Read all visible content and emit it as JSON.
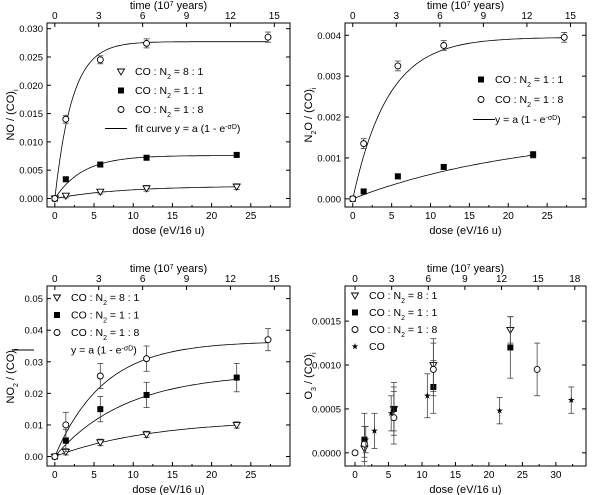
{
  "chart_data": [
    {
      "type": "scatter",
      "panel": "top-left",
      "xlabel": "dose (eV/16 u)",
      "ylabel": "NO / (CO)i",
      "ylabel_parts": [
        "NO / (CO)",
        "i"
      ],
      "top_axis_title": "time (10",
      "top_axis_exp": "7",
      "top_axis_unit": " years)",
      "xlim": [
        -1,
        30
      ],
      "ylim": [
        -0.0015,
        0.031
      ],
      "x_ticks": [
        0,
        5,
        10,
        15,
        20,
        25
      ],
      "y_ticks": [
        0.0,
        0.005,
        0.01,
        0.015,
        0.02,
        0.025,
        0.03
      ],
      "y_tick_labels": [
        "0.000",
        "0.005",
        "0.010",
        "0.015",
        "0.020",
        "0.025",
        "0.030"
      ],
      "top_ticks": [
        "0",
        "3",
        "6",
        "9",
        "12",
        "15"
      ],
      "top_tick_x": [
        0,
        5.6,
        11.2,
        16.8,
        22.4,
        28.0
      ],
      "legend_position": "center-right",
      "series": [
        {
          "name": "CO : N2 = 8 : 1",
          "label_pre": "CO : N",
          "label_post": " = 8 : 1",
          "marker": "triangle-down",
          "x": [
            0,
            1.4,
            5.8,
            11.7,
            23.2
          ],
          "y": [
            0,
            0.0005,
            0.0012,
            0.0018,
            0.0021
          ],
          "err": [
            0.0003,
            0.0004,
            0.0004,
            0.0005,
            0.0005
          ],
          "fit_a": 0.0022,
          "fit_s": 0.12
        },
        {
          "name": "CO : N2 = 1 : 1",
          "label_pre": "CO : N",
          "label_post": " = 1 : 1",
          "marker": "square",
          "x": [
            0,
            1.4,
            5.8,
            11.7,
            23.2
          ],
          "y": [
            0,
            0.0034,
            0.006,
            0.0072,
            0.0077
          ],
          "err": [
            0.0002,
            0.0003,
            0.0004,
            0.0004,
            0.0004
          ],
          "fit_a": 0.0076,
          "fit_s": 0.28
        },
        {
          "name": "CO : N2 = 1 : 8",
          "label_pre": "CO : N",
          "label_post": " = 1 : 8",
          "marker": "circle",
          "x": [
            0,
            1.4,
            5.8,
            11.7,
            27.2
          ],
          "y": [
            0,
            0.014,
            0.0245,
            0.0274,
            0.0285
          ],
          "err": [
            0.0003,
            0.0007,
            0.0007,
            0.0008,
            0.0009
          ],
          "fit_a": 0.0277,
          "fit_s": 0.45
        }
      ],
      "fit_legend": "fit curve y = a (1 - e",
      "fit_exp": "-σD",
      "fit_legend_end": ")"
    },
    {
      "type": "scatter",
      "panel": "top-right",
      "xlabel": "dose (eV/16 u)",
      "ylabel": "N2O / (CO)i",
      "ylabel_parts": [
        "N",
        "2",
        "O / (CO)",
        "i"
      ],
      "top_axis_title": "time (10",
      "top_axis_exp": "7",
      "top_axis_unit": " years)",
      "xlim": [
        -1,
        30
      ],
      "ylim": [
        -0.0002,
        0.0043
      ],
      "x_ticks": [
        0,
        5,
        10,
        15,
        20,
        25
      ],
      "y_ticks": [
        0.0,
        0.001,
        0.002,
        0.003,
        0.004
      ],
      "y_tick_labels": [
        "0.000",
        "0.001",
        "0.002",
        "0.003",
        "0.004"
      ],
      "top_ticks": [
        "0",
        "3",
        "6",
        "9",
        "12",
        "15"
      ],
      "top_tick_x": [
        0,
        5.6,
        11.2,
        16.8,
        22.4,
        28.0
      ],
      "legend_position": "center-right",
      "series": [
        {
          "name": "CO : N2 = 1 : 1",
          "label_pre": "CO : N",
          "label_post": " = 1 : 1",
          "marker": "square",
          "x": [
            0,
            1.4,
            5.8,
            11.7,
            23.2
          ],
          "y": [
            0,
            0.00018,
            0.00055,
            0.00078,
            0.00108
          ],
          "err": [
            3e-05,
            6e-05,
            6e-05,
            6e-05,
            8e-05
          ],
          "fit_a": 0.00165,
          "fit_s": 0.045
        },
        {
          "name": "CO : N2 = 1 : 8",
          "label_pre": "CO : N",
          "label_post": " = 1 : 8",
          "marker": "circle",
          "x": [
            0,
            1.4,
            5.8,
            11.7,
            27.2
          ],
          "y": [
            0,
            0.00135,
            0.00325,
            0.00375,
            0.00395
          ],
          "err": [
            3e-05,
            0.00012,
            0.00012,
            0.00012,
            0.00012
          ],
          "fit_a": 0.00395,
          "fit_s": 0.22
        }
      ],
      "fit_legend": "y = a (1 - e",
      "fit_exp": "-σD",
      "fit_legend_end": ")"
    },
    {
      "type": "scatter",
      "panel": "bottom-left",
      "xlabel": "dose (eV/16 u)",
      "ylabel": "NO2 / (CO)i",
      "ylabel_parts": [
        "NO",
        "2",
        " / (CO)",
        "i"
      ],
      "top_axis_title": "time (10",
      "top_axis_exp": "7",
      "top_axis_unit": " years)",
      "xlim": [
        -1,
        30
      ],
      "ylim": [
        -0.003,
        0.054
      ],
      "x_ticks": [
        0,
        5,
        10,
        15,
        20,
        25
      ],
      "y_ticks": [
        0.0,
        0.01,
        0.02,
        0.03,
        0.04,
        0.05
      ],
      "y_tick_labels": [
        "0.00",
        "0.01",
        "0.02",
        "0.03",
        "0.04",
        "0.05"
      ],
      "top_ticks": [
        "0",
        "3",
        "6",
        "9",
        "12",
        "15"
      ],
      "top_tick_x": [
        0,
        5.6,
        11.2,
        16.8,
        22.4,
        28.0
      ],
      "legend_position": "top-left",
      "series": [
        {
          "name": "CO : N2 = 8 : 1",
          "label_pre": "CO : N",
          "label_post": " = 8 : 1",
          "marker": "triangle-down",
          "x": [
            0,
            1.4,
            5.8,
            11.7,
            23.2
          ],
          "y": [
            0,
            0.0015,
            0.0045,
            0.007,
            0.01
          ],
          "err": [
            0.0005,
            0.001,
            0.001,
            0.001,
            0.001
          ],
          "fit_a": 0.0118,
          "fit_s": 0.08
        },
        {
          "name": "CO : N2 = 1 : 1",
          "label_pre": "CO : N",
          "label_post": " = 1 : 1",
          "marker": "square",
          "x": [
            0,
            1.4,
            5.8,
            11.7,
            23.2
          ],
          "y": [
            0,
            0.005,
            0.015,
            0.0195,
            0.025
          ],
          "err": [
            0.0005,
            0.0035,
            0.004,
            0.004,
            0.0045
          ],
          "fit_a": 0.0265,
          "fit_s": 0.11
        },
        {
          "name": "CO : N2 = 1 : 8",
          "label_pre": "CO : N",
          "label_post": " = 1 : 8",
          "marker": "circle",
          "x": [
            0,
            1.4,
            5.8,
            11.7,
            27.2
          ],
          "y": [
            0,
            0.01,
            0.0255,
            0.031,
            0.037
          ],
          "err": [
            0.0005,
            0.004,
            0.004,
            0.004,
            0.0035
          ],
          "fit_a": 0.0365,
          "fit_s": 0.16
        }
      ],
      "fit_legend": "y = a (1 - e",
      "fit_exp": "-σD",
      "fit_legend_end": ")"
    },
    {
      "type": "scatter",
      "panel": "bottom-right",
      "xlabel": "dose (eV/16 u)",
      "ylabel": "O3 / (CO)i",
      "ylabel_parts": [
        "O",
        "3",
        " / (CO)",
        "i"
      ],
      "top_axis_title": "time (10",
      "top_axis_exp": "7",
      "top_axis_unit": " years)",
      "xlim": [
        -1.5,
        34.5
      ],
      "ylim": [
        -0.00015,
        0.0019
      ],
      "x_ticks": [
        0,
        5,
        10,
        15,
        20,
        25,
        30
      ],
      "y_ticks": [
        0.0,
        0.0005,
        0.001,
        0.0015
      ],
      "y_tick_labels": [
        "0.0000",
        "0.0005",
        "0.0010",
        "0.0015"
      ],
      "top_ticks": [
        "0",
        "3",
        "6",
        "9",
        "12",
        "15",
        "18"
      ],
      "top_tick_x": [
        0,
        5.47,
        10.94,
        16.41,
        21.88,
        27.35,
        32.82
      ],
      "legend_position": "top-left",
      "series": [
        {
          "name": "CO : N2 = 8 : 1",
          "label_pre": "CO : N",
          "label_post": " = 8 : 1",
          "marker": "triangle-down",
          "x": [
            1.4,
            5.8,
            11.7,
            23.2
          ],
          "y": [
            5e-05,
            0.0005,
            0.001,
            0.0014
          ],
          "err": [
            0.0001,
            0.00025,
            0.0003,
            0.00015
          ]
        },
        {
          "name": "CO : N2 = 1 : 1",
          "label_pre": "CO : N",
          "label_post": " = 1 : 1",
          "marker": "square",
          "x": [
            1.4,
            5.8,
            11.7,
            23.2
          ],
          "y": [
            0.00015,
            0.0005,
            0.00075,
            0.0012
          ],
          "err": [
            0.0003,
            0.0003,
            0.0003,
            0.00035
          ]
        },
        {
          "name": "CO : N2 = 1 : 8",
          "label_pre": "CO : N",
          "label_post": " = 1 : 8",
          "marker": "circle",
          "x": [
            0,
            1.4,
            5.8,
            11.7,
            27.2
          ],
          "y": [
            0.0,
            0.0001,
            0.0004,
            0.00095,
            0.00095
          ],
          "err": [
            2e-05,
            0.0002,
            0.0003,
            0.0003,
            0.0003
          ]
        },
        {
          "name": "CO",
          "label_pre": "CO",
          "label_post": "",
          "marker": "star",
          "x": [
            1.6,
            2.9,
            5.4,
            10.8,
            21.6,
            32.3
          ],
          "y": [
            0.00015,
            0.00025,
            0.00045,
            0.00065,
            0.00048,
            0.0006
          ],
          "err": [
            0.00015,
            0.0002,
            0.0002,
            0.00025,
            0.00015,
            0.00015
          ]
        }
      ]
    }
  ]
}
